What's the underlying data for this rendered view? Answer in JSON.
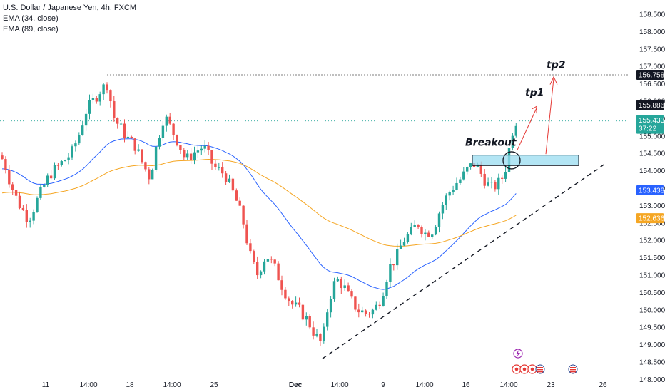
{
  "legend": {
    "symbol": "U.S. Dollar / Japanese Yen, 4h, FXCM",
    "ema_fast": "EMA (34, close)",
    "ema_slow": "EMA (89, close)"
  },
  "chart_data": {
    "type": "candlestick",
    "ylim": [
      148.0,
      158.5
    ],
    "y_ticks": [
      "158.500",
      "158.000",
      "157.500",
      "157.000",
      "156.500",
      "156.000",
      "155.500",
      "155.000",
      "154.500",
      "154.000",
      "153.500",
      "153.000",
      "152.500",
      "152.000",
      "151.500",
      "151.000",
      "150.500",
      "150.000",
      "149.500",
      "149.000",
      "148.500",
      "148.000"
    ],
    "x_ticks": [
      "11",
      "14:00",
      "18",
      "14:00",
      "25",
      "Dec",
      "14:00",
      "9",
      "14:00",
      "16",
      "14:00",
      "23",
      "26"
    ],
    "series": [
      {
        "name": "EMA (34, close)",
        "color": "#2962ff"
      },
      {
        "name": "EMA (89, close)",
        "color": "#f5a623"
      }
    ],
    "price_tags": [
      {
        "label": "156.758",
        "value": 156.758,
        "style": "black"
      },
      {
        "label": "155.886",
        "value": 155.886,
        "style": "black"
      },
      {
        "label": "155.433",
        "sub": "37:22",
        "value": 155.433,
        "style": "green"
      },
      {
        "label": "153.438",
        "value": 153.438,
        "style": "blue"
      },
      {
        "label": "152.636",
        "value": 152.636,
        "style": "orange"
      }
    ],
    "resistance_levels": [
      156.758,
      155.886
    ],
    "breakout_zone": [
      154.15,
      154.45
    ],
    "annotations": [
      "Breakout",
      "tp1",
      "tp2"
    ],
    "colors": {
      "up": "#26a69a",
      "down": "#ef5350",
      "trendline": "#131722",
      "zone": "#9adcf0",
      "arrow": "#e53935"
    }
  }
}
